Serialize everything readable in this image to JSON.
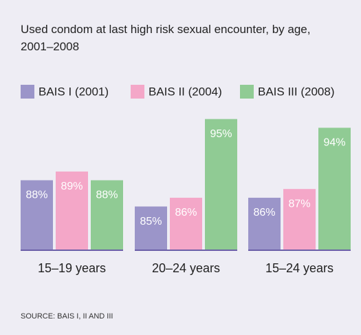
{
  "chart_data": {
    "type": "bar",
    "title": "Used condom at last high risk sexual encounter, by age, 2001–2008",
    "categories": [
      "15–19 years",
      "20–24 years",
      "15–24 years"
    ],
    "series": [
      {
        "name": "BAIS I (2001)",
        "color": "#9b95c9",
        "values": [
          88,
          85,
          86
        ],
        "value_labels": [
          "88%",
          "85%",
          "86%"
        ]
      },
      {
        "name": "BAIS II (2004)",
        "color": "#f4a7c8",
        "values": [
          89,
          86,
          87
        ],
        "value_labels": [
          "89%",
          "86%",
          "87%"
        ]
      },
      {
        "name": "BAIS III (2008)",
        "color": "#90cb94",
        "values": [
          88,
          95,
          94
        ],
        "value_labels": [
          "88%",
          "95%",
          "94%"
        ]
      }
    ],
    "ylim": [
      80,
      96
    ],
    "source": "SOURCE: BAIS I, II AND III"
  }
}
